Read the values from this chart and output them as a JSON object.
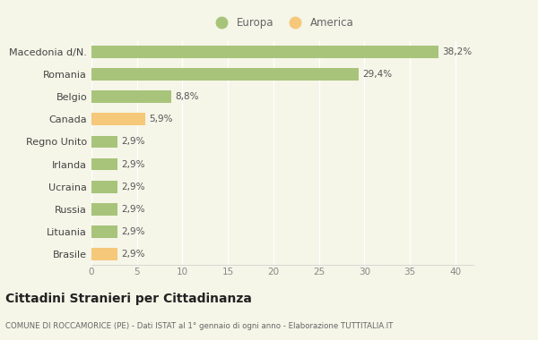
{
  "categories": [
    "Brasile",
    "Lituania",
    "Russia",
    "Ucraina",
    "Irlanda",
    "Regno Unito",
    "Canada",
    "Belgio",
    "Romania",
    "Macedonia d/N."
  ],
  "values": [
    2.9,
    2.9,
    2.9,
    2.9,
    2.9,
    2.9,
    5.9,
    8.8,
    29.4,
    38.2
  ],
  "labels": [
    "2,9%",
    "2,9%",
    "2,9%",
    "2,9%",
    "2,9%",
    "2,9%",
    "5,9%",
    "8,8%",
    "29,4%",
    "38,2%"
  ],
  "colors": [
    "#f5c87a",
    "#a8c47a",
    "#a8c47a",
    "#a8c47a",
    "#a8c47a",
    "#a8c47a",
    "#f5c87a",
    "#a8c47a",
    "#a8c47a",
    "#a8c47a"
  ],
  "europa_color": "#a8c47a",
  "america_color": "#f5c87a",
  "background_color": "#f5f5e8",
  "title": "Cittadini Stranieri per Cittadinanza",
  "subtitle": "COMUNE DI ROCCAMORICE (PE) - Dati ISTAT al 1° gennaio di ogni anno - Elaborazione TUTTITALIA.IT",
  "xlim": [
    0,
    42
  ],
  "xticks": [
    0,
    5,
    10,
    15,
    20,
    25,
    30,
    35,
    40
  ],
  "legend_europa": "Europa",
  "legend_america": "America",
  "bar_height": 0.55
}
